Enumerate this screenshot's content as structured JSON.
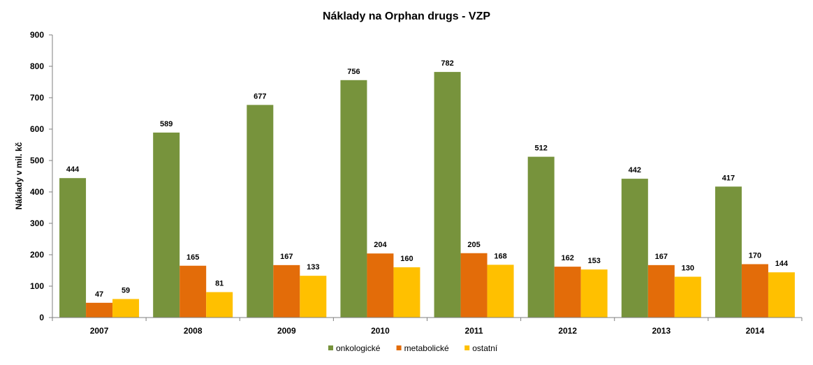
{
  "chart_data": {
    "type": "bar",
    "title": "Náklady na Orphan drugs - VZP",
    "xlabel": "",
    "ylabel": "Náklady v mil. kč",
    "ylim": [
      0,
      900
    ],
    "yticks": [
      0,
      100,
      200,
      300,
      400,
      500,
      600,
      700,
      800,
      900
    ],
    "categories": [
      "2007",
      "2008",
      "2009",
      "2010",
      "2011",
      "2012",
      "2013",
      "2014"
    ],
    "series": [
      {
        "name": "onkologické",
        "color": "#77933C",
        "values": [
          444,
          589,
          677,
          756,
          782,
          512,
          442,
          417
        ]
      },
      {
        "name": "metabolické",
        "color": "#E36C09",
        "values": [
          47,
          165,
          167,
          204,
          205,
          162,
          167,
          170
        ]
      },
      {
        "name": "ostatní",
        "color": "#FFC000",
        "values": [
          59,
          81,
          133,
          160,
          168,
          153,
          130,
          144
        ]
      }
    ],
    "grid": false,
    "legend_position": "bottom",
    "data_labels": true
  }
}
